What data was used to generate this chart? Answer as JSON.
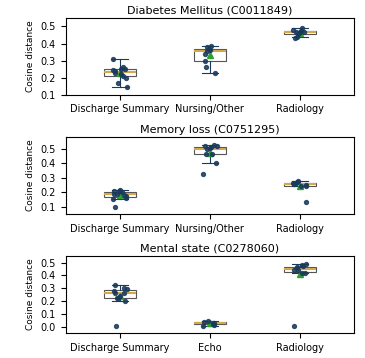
{
  "plots": [
    {
      "title": "Diabetes Mellitus (C0011849)",
      "categories": [
        "Discharge Summary",
        "Nursing/Other",
        "Radiology"
      ],
      "boxes": [
        {
          "q1": 0.205,
          "median": 0.245,
          "q3": 0.255,
          "whislo": 0.145,
          "whishi": 0.31,
          "mean": 0.215,
          "fliers": [
            0.17,
            0.25,
            0.25,
            0.24,
            0.23,
            0.22,
            0.2,
            0.26
          ]
        },
        {
          "q1": 0.295,
          "median": 0.355,
          "q3": 0.38,
          "whislo": 0.23,
          "whishi": 0.385,
          "mean": 0.33,
          "fliers": [
            0.265,
            0.37,
            0.36,
            0.35
          ]
        },
        {
          "q1": 0.455,
          "median": 0.465,
          "q3": 0.475,
          "whislo": 0.43,
          "whishi": 0.49,
          "mean": 0.46,
          "fliers": [
            0.44,
            0.465,
            0.47,
            0.46,
            0.455
          ]
        }
      ],
      "ylim": [
        0.1,
        0.55
      ],
      "yticks": [
        0.1,
        0.2,
        0.3,
        0.4,
        0.5
      ]
    },
    {
      "title": "Memory loss (C0751295)",
      "categories": [
        "Discharge Summary",
        "Nursing/Other",
        "Radiology"
      ],
      "boxes": [
        {
          "q1": 0.165,
          "median": 0.185,
          "q3": 0.205,
          "whislo": 0.1,
          "whishi": 0.215,
          "mean": 0.175,
          "fliers": [
            0.15,
            0.17,
            0.18,
            0.19,
            0.2,
            0.21
          ]
        },
        {
          "q1": 0.465,
          "median": 0.505,
          "q3": 0.515,
          "whislo": 0.325,
          "whishi": 0.525,
          "mean": 0.465,
          "fliers": [
            0.4,
            0.495,
            0.505,
            0.52
          ]
        },
        {
          "q1": 0.24,
          "median": 0.25,
          "q3": 0.265,
          "whislo": 0.13,
          "whishi": 0.275,
          "mean": 0.23,
          "fliers": [
            0.245,
            0.255,
            0.265,
            0.27
          ]
        }
      ],
      "ylim": [
        0.05,
        0.58
      ],
      "yticks": [
        0.1,
        0.2,
        0.3,
        0.4,
        0.5
      ]
    },
    {
      "title": "Mental state (C0278060)",
      "categories": [
        "Discharge Summary",
        "Echo",
        "Radiology"
      ],
      "boxes": [
        {
          "q1": 0.225,
          "median": 0.265,
          "q3": 0.295,
          "whislo": 0.005,
          "whishi": 0.325,
          "mean": 0.245,
          "fliers": [
            0.2,
            0.24,
            0.26,
            0.28,
            0.3
          ]
        },
        {
          "q1": 0.015,
          "median": 0.025,
          "q3": 0.035,
          "whislo": 0.005,
          "whishi": 0.04,
          "mean": 0.03,
          "fliers": [
            0.015,
            0.02,
            0.025,
            0.03
          ]
        },
        {
          "q1": 0.415,
          "median": 0.44,
          "q3": 0.465,
          "whislo": 0.005,
          "whishi": 0.485,
          "mean": 0.37,
          "fliers": [
            0.42,
            0.44,
            0.455,
            0.47,
            0.48
          ]
        }
      ],
      "ylim": [
        -0.05,
        0.55
      ],
      "yticks": [
        0.0,
        0.1,
        0.2,
        0.3,
        0.4,
        0.5
      ]
    }
  ],
  "box_color": "#d4a84b",
  "median_color": "#d4a84b",
  "scatter_color": "#1a3a5c",
  "mean_color": "#2ca02c",
  "whisker_color": "#1a3a5c",
  "cap_color": "#1a3a5c",
  "box_edge_color": "#555555",
  "ylabel": "Cosine distance",
  "figsize": [
    3.65,
    3.58
  ],
  "dpi": 100
}
